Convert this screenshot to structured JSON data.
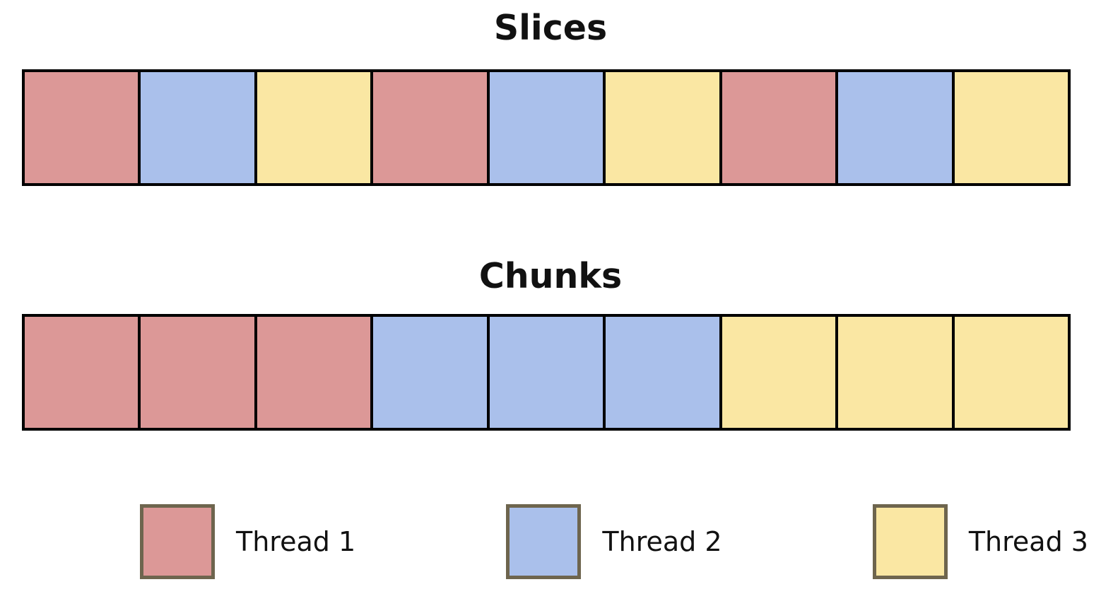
{
  "slices": {
    "title": "Slices",
    "blocks": [
      "thread-1",
      "thread-2",
      "thread-3",
      "thread-1",
      "thread-2",
      "thread-3",
      "thread-1",
      "thread-2",
      "thread-3"
    ]
  },
  "chunks": {
    "title": "Chunks",
    "blocks": [
      "thread-1",
      "thread-1",
      "thread-1",
      "thread-2",
      "thread-2",
      "thread-2",
      "thread-3",
      "thread-3",
      "thread-3"
    ]
  },
  "legend": {
    "items": [
      {
        "id": "thread-1",
        "label": "Thread 1"
      },
      {
        "id": "thread-2",
        "label": "Thread 2"
      },
      {
        "id": "thread-3",
        "label": "Thread 3"
      }
    ]
  },
  "colors": {
    "thread-1": "#DC9897",
    "thread-2": "#AAC0EB",
    "thread-3": "#FAE7A3",
    "block_border": "#000000",
    "legend_swatch_border": "#6E654E"
  }
}
